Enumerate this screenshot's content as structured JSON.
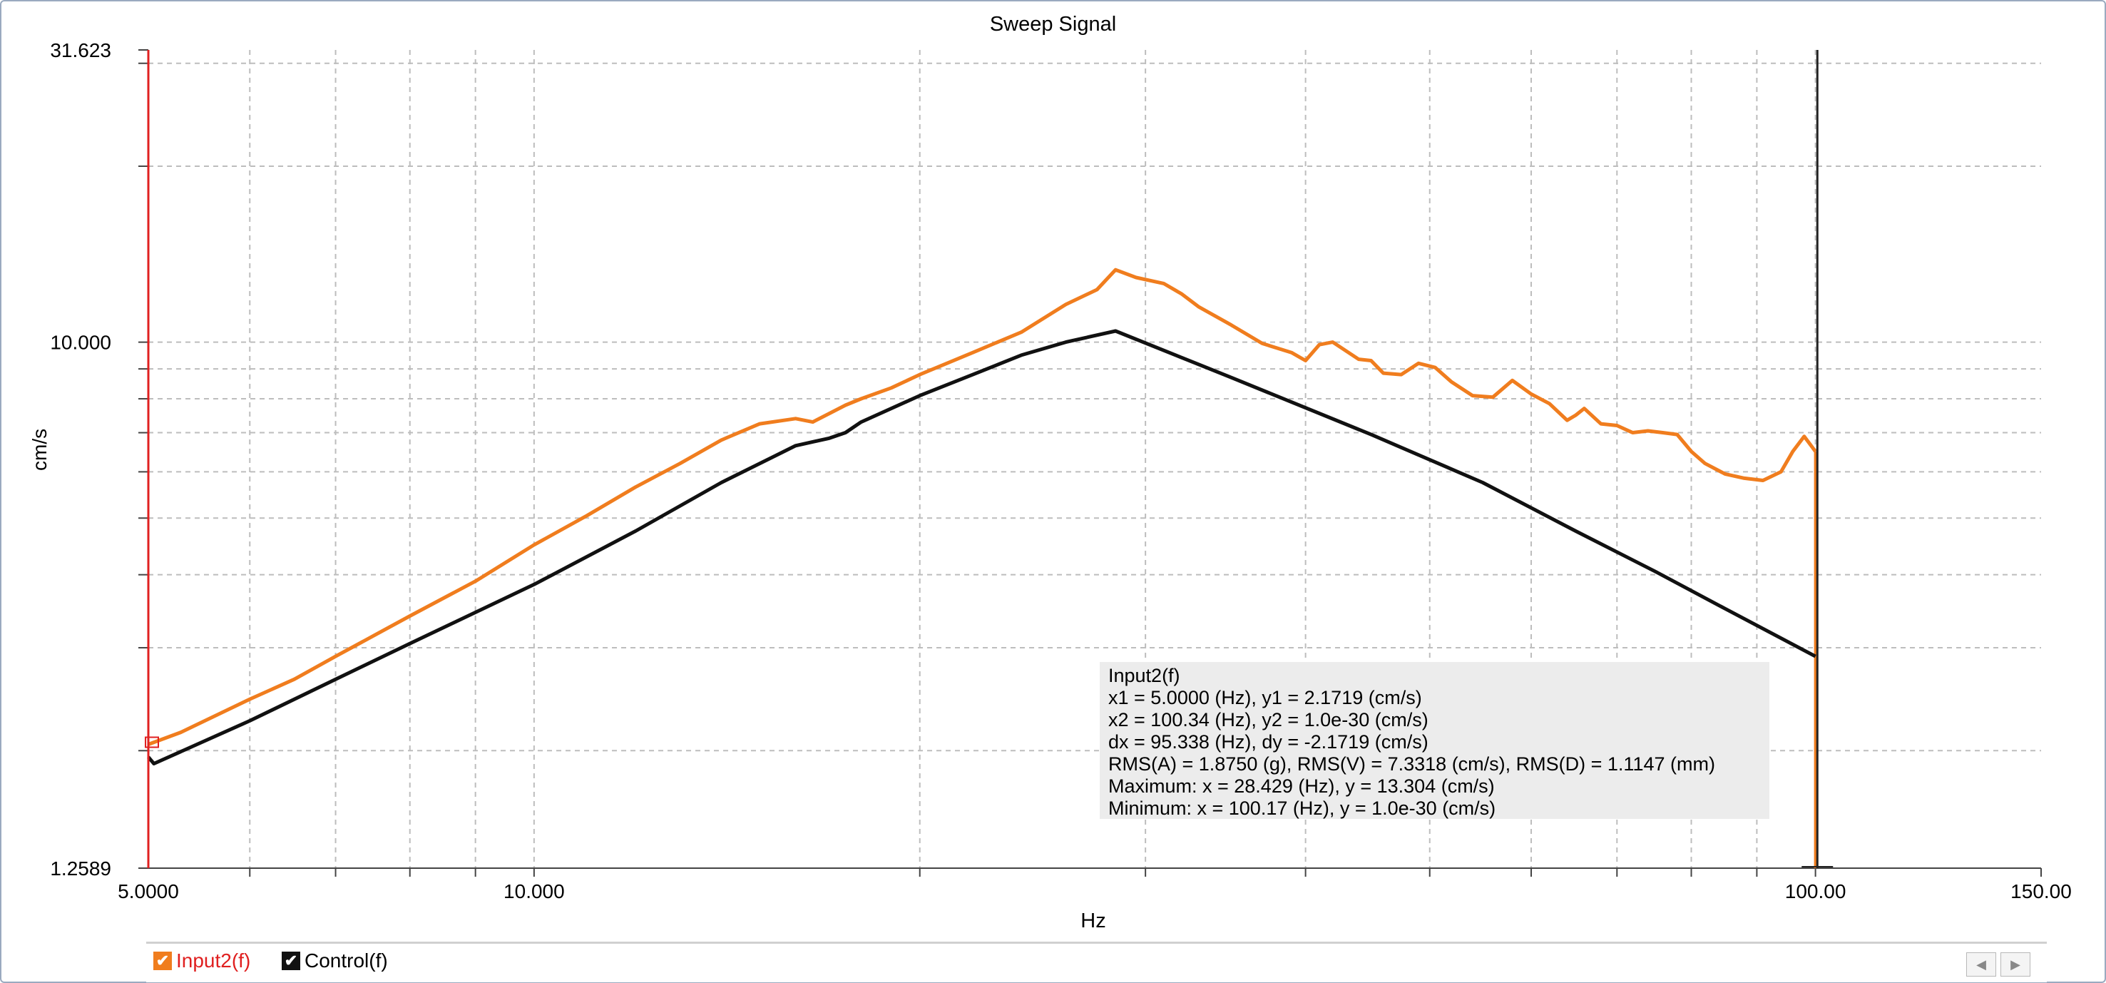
{
  "chart_data": {
    "type": "line",
    "title": "Sweep Signal",
    "xlabel": "Hz",
    "ylabel": "cm/s",
    "x_scale": "log",
    "y_scale": "log",
    "xlim": [
      5.0,
      150.0
    ],
    "ylim": [
      1.2589,
      31.623
    ],
    "x_ticks": [
      "5.0000",
      "10.000",
      "100.00",
      "150.00"
    ],
    "x_tick_values": [
      5,
      10,
      100,
      150
    ],
    "y_ticks": [
      "31.623",
      "10.000",
      "1.2589"
    ],
    "y_tick_values": [
      31.623,
      10.0,
      1.2589
    ],
    "grid": true,
    "legend_position": "bottom-left",
    "series": [
      {
        "name": "Input2(f)",
        "color": "#f07d1e",
        "x": [
          5.0,
          5.3,
          6.0,
          6.5,
          7.0,
          8.0,
          9.0,
          10.0,
          11.0,
          12.0,
          13.0,
          14.0,
          15.0,
          16.0,
          16.5,
          17.0,
          17.5,
          18.0,
          19.0,
          20.0,
          22.0,
          24.0,
          26.0,
          27.5,
          28.43,
          29.5,
          31.0,
          32.0,
          33.0,
          35.0,
          37.0,
          39.0,
          40.0,
          41.0,
          42.0,
          44.0,
          45.0,
          46.0,
          47.5,
          49.0,
          50.5,
          52.0,
          54.0,
          56.0,
          58.0,
          60.0,
          62.0,
          64.0,
          65.0,
          66.0,
          68.0,
          70.0,
          72.0,
          74.0,
          76.0,
          78.0,
          80.0,
          82.0,
          85.0,
          88.0,
          91.0,
          94.0,
          96.0,
          98.0,
          100.0
        ],
        "y": [
          2.05,
          2.15,
          2.45,
          2.65,
          2.9,
          3.4,
          3.9,
          4.5,
          5.05,
          5.65,
          6.2,
          6.8,
          7.25,
          7.4,
          7.3,
          7.55,
          7.8,
          8.0,
          8.35,
          8.8,
          9.6,
          10.4,
          11.6,
          12.3,
          13.3,
          12.9,
          12.6,
          12.1,
          11.5,
          10.7,
          9.95,
          9.6,
          9.3,
          9.9,
          10.0,
          9.35,
          9.3,
          8.85,
          8.8,
          9.2,
          9.05,
          8.55,
          8.1,
          8.05,
          8.6,
          8.15,
          7.85,
          7.35,
          7.5,
          7.7,
          7.25,
          7.2,
          7.0,
          7.05,
          7.0,
          6.95,
          6.5,
          6.2,
          5.95,
          5.85,
          5.8,
          6.0,
          6.5,
          6.9,
          6.5
        ]
      },
      {
        "name": "Control(f)",
        "color": "#111111",
        "x": [
          5.0,
          5.05,
          6.0,
          7.0,
          8.0,
          10.0,
          12.0,
          14.0,
          16.0,
          17.0,
          17.5,
          18.0,
          20.0,
          22.0,
          24.0,
          26.0,
          28.43,
          35.0,
          45.0,
          55.0,
          65.0,
          75.0,
          85.0,
          100.0
        ],
        "y": [
          1.95,
          1.9,
          2.25,
          2.65,
          3.05,
          3.85,
          4.75,
          5.75,
          6.65,
          6.85,
          7.0,
          7.3,
          8.1,
          8.8,
          9.5,
          10.0,
          10.45,
          8.7,
          6.95,
          5.75,
          4.75,
          4.05,
          3.5,
          2.9
        ]
      }
    ],
    "cursors": [
      {
        "name": "x1",
        "value": 5.0,
        "color": "#e02020"
      },
      {
        "name": "x2",
        "value": 100.34,
        "color": "#222222"
      }
    ]
  },
  "readout": {
    "title": "Input2(f)",
    "lines": [
      "x1 = 5.0000 (Hz), y1 = 2.1719 (cm/s)",
      "x2 = 100.34 (Hz), y2 = 1.0e-30 (cm/s)",
      "dx = 95.338 (Hz), dy = -2.1719 (cm/s)",
      "RMS(A) = 1.8750 (g), RMS(V) = 7.3318 (cm/s), RMS(D) = 1.1147 (mm)",
      "Maximum: x = 28.429 (Hz), y = 13.304 (cm/s)",
      "Minimum: x = 100.17 (Hz), y = 1.0e-30 (cm/s)"
    ]
  },
  "legend": {
    "items": [
      {
        "label": "Input2(f)",
        "checked": true,
        "box_color": "#f07d1e",
        "text_color": "#e02020"
      },
      {
        "label": "Control(f)",
        "checked": true,
        "box_color": "#111111",
        "text_color": "#000000"
      }
    ],
    "prev_icon": "◀",
    "next_icon": "▶"
  }
}
